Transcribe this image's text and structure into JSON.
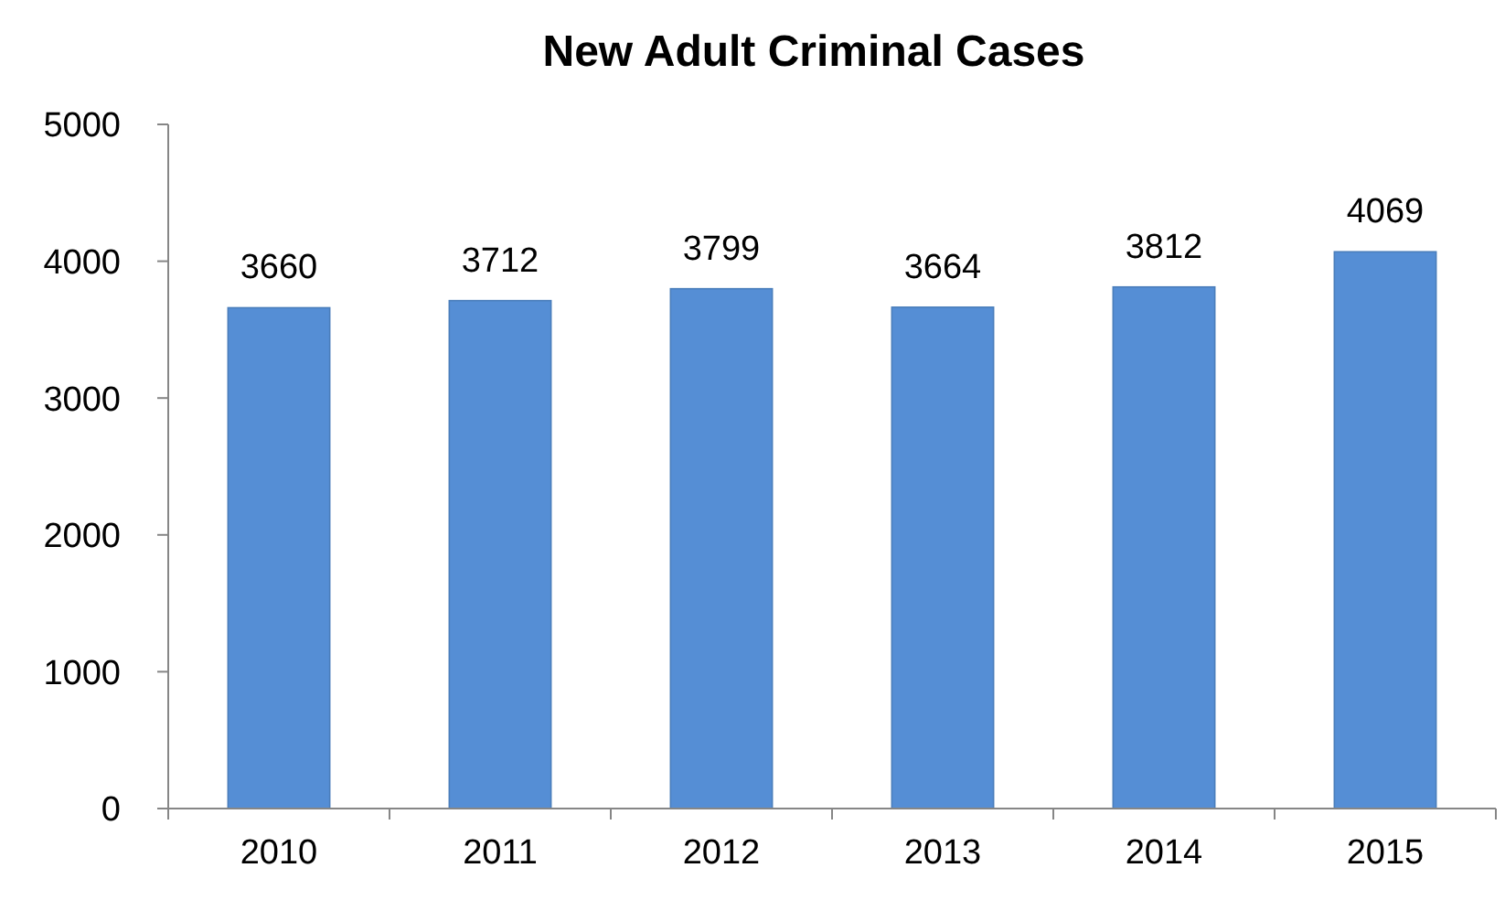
{
  "chart_data": {
    "type": "bar",
    "title": "New Adult Criminal Cases",
    "categories": [
      "2010",
      "2011",
      "2012",
      "2013",
      "2014",
      "2015"
    ],
    "values": [
      3660,
      3712,
      3799,
      3664,
      3812,
      4069
    ],
    "color": "#558ed5",
    "ylim": [
      0,
      5000
    ],
    "yticks": [
      0,
      1000,
      2000,
      3000,
      4000,
      5000
    ],
    "grid": false,
    "data_labels": true
  }
}
